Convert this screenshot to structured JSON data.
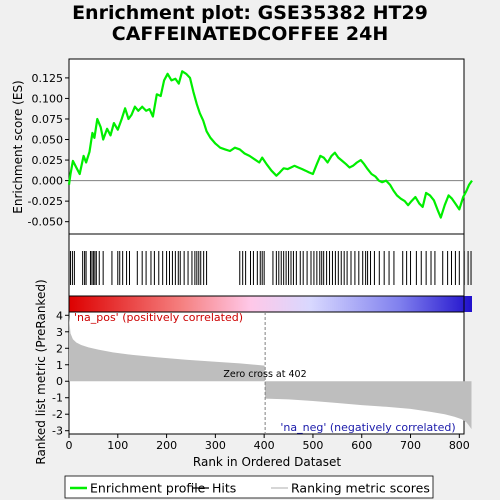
{
  "title_line1": "Enrichment plot: GSE35382 HT29",
  "title_line2": "CAFFEINATEDCOFFEE 24H",
  "chart_data": {
    "type": "line",
    "title": "Enrichment plot: GSE35382 HT29 CAFFEINATEDCOFFEE 24H",
    "xlabel": "Rank in Ordered Dataset",
    "xlim": [
      0,
      826
    ],
    "x_ticks": [
      0,
      100,
      200,
      300,
      400,
      500,
      600,
      700,
      800
    ],
    "es_panel": {
      "ylabel": "Enrichment score (ES)",
      "ylim": [
        -0.065,
        0.148
      ],
      "y_ticks": [
        -0.05,
        -0.025,
        0.0,
        0.025,
        0.05,
        0.075,
        0.1,
        0.125
      ],
      "series": [
        {
          "name": "Enrichment profile",
          "color": "#00ee00",
          "x": [
            0,
            3,
            8,
            15,
            22,
            30,
            35,
            42,
            48,
            52,
            58,
            65,
            70,
            78,
            85,
            92,
            100,
            108,
            115,
            122,
            128,
            135,
            142,
            150,
            158,
            165,
            172,
            180,
            188,
            195,
            202,
            210,
            218,
            225,
            232,
            240,
            248,
            255,
            262,
            268,
            275,
            282,
            290,
            300,
            310,
            320,
            330,
            340,
            350,
            360,
            370,
            380,
            390,
            396,
            405,
            415,
            425,
            432,
            440,
            448,
            455,
            462,
            470,
            478,
            485,
            492,
            500,
            508,
            515,
            522,
            530,
            538,
            545,
            552,
            560,
            568,
            575,
            582,
            590,
            598,
            605,
            612,
            620,
            628,
            635,
            642,
            650,
            658,
            665,
            672,
            680,
            688,
            695,
            702,
            710,
            718,
            725,
            732,
            740,
            748,
            755,
            762,
            770,
            778,
            785,
            792,
            800,
            808,
            815,
            820,
            826
          ],
          "y": [
            -0.005,
            0.008,
            0.024,
            0.016,
            0.008,
            0.03,
            0.022,
            0.035,
            0.058,
            0.052,
            0.075,
            0.065,
            0.05,
            0.063,
            0.055,
            0.07,
            0.062,
            0.075,
            0.088,
            0.075,
            0.08,
            0.09,
            0.085,
            0.09,
            0.085,
            0.087,
            0.078,
            0.105,
            0.103,
            0.122,
            0.13,
            0.122,
            0.124,
            0.118,
            0.133,
            0.13,
            0.125,
            0.108,
            0.093,
            0.082,
            0.073,
            0.06,
            0.052,
            0.045,
            0.04,
            0.038,
            0.036,
            0.04,
            0.038,
            0.033,
            0.03,
            0.026,
            0.022,
            0.028,
            0.02,
            0.012,
            0.006,
            0.01,
            0.015,
            0.014,
            0.016,
            0.018,
            0.016,
            0.014,
            0.012,
            0.01,
            0.008,
            0.02,
            0.03,
            0.028,
            0.022,
            0.03,
            0.034,
            0.028,
            0.024,
            0.02,
            0.016,
            0.018,
            0.022,
            0.025,
            0.02,
            0.014,
            0.008,
            0.005,
            0.0,
            -0.002,
            0.0,
            -0.005,
            -0.012,
            -0.018,
            -0.022,
            -0.025,
            -0.03,
            -0.025,
            -0.02,
            -0.028,
            -0.032,
            -0.015,
            -0.018,
            -0.024,
            -0.035,
            -0.045,
            -0.03,
            -0.018,
            -0.022,
            -0.028,
            -0.035,
            -0.02,
            -0.012,
            -0.005,
            0.0
          ]
        }
      ]
    },
    "hits_panel": {
      "name": "Hits",
      "hit_ranks": [
        3,
        7,
        11,
        28,
        32,
        35,
        44,
        47,
        50,
        53,
        56,
        62,
        70,
        88,
        100,
        104,
        110,
        118,
        124,
        140,
        150,
        158,
        168,
        175,
        184,
        192,
        200,
        206,
        212,
        218,
        224,
        228,
        236,
        244,
        252,
        258,
        262,
        266,
        270,
        276,
        282,
        350,
        356,
        362,
        372,
        378,
        386,
        392,
        396,
        400,
        418,
        425,
        430,
        435,
        440,
        445,
        450,
        455,
        460,
        466,
        474,
        480,
        488,
        496,
        502,
        508,
        514,
        518,
        522,
        528,
        534,
        540,
        546,
        552,
        558,
        564,
        570,
        578,
        586,
        594,
        602,
        608,
        612,
        618,
        626,
        636,
        646,
        656,
        666,
        684,
        692,
        700,
        712,
        722,
        732,
        742,
        750,
        766,
        776,
        784,
        792,
        800,
        810,
        818,
        824
      ]
    },
    "ranked_metric_panel": {
      "ylabel": "Ranked list metric (PreRanked)",
      "ylim": [
        -3.2,
        4.2
      ],
      "y_ticks": [
        -3,
        -2,
        -1,
        0,
        1,
        2,
        3,
        4
      ],
      "name": "Ranking metric scores",
      "fill_color": "#bebebe",
      "x": [
        0,
        3,
        8,
        15,
        25,
        40,
        60,
        90,
        130,
        180,
        240,
        300,
        350,
        390,
        401,
        402,
        450,
        500,
        550,
        600,
        650,
        700,
        740,
        770,
        790,
        805,
        815,
        820,
        825
      ],
      "y": [
        3.9,
        2.9,
        2.55,
        2.35,
        2.2,
        2.05,
        1.92,
        1.75,
        1.6,
        1.45,
        1.3,
        1.18,
        1.08,
        0.98,
        0.95,
        -1.05,
        -1.1,
        -1.2,
        -1.32,
        -1.45,
        -1.55,
        -1.68,
        -1.85,
        -2.0,
        -2.15,
        -2.3,
        -2.5,
        -2.7,
        -2.9
      ]
    },
    "zero_cross_rank": 402,
    "annotations": {
      "pos": "'na_pos' (positively correlated)",
      "neg": "'na_neg' (negatively correlated)",
      "zero": "Zero cross at 402"
    },
    "gradient_colors": [
      "#dd0000",
      "#f58080",
      "#ffc8e8",
      "#d8d8ff",
      "#8080ee",
      "#2010cc"
    ],
    "legend": [
      {
        "label": "Enrichment profile",
        "color": "#00ee00",
        "style": "thick-line"
      },
      {
        "label": "Hits",
        "color": "#000000",
        "style": "line"
      },
      {
        "label": "Ranking metric scores",
        "color": "#bebebe",
        "style": "thin-line"
      }
    ]
  }
}
